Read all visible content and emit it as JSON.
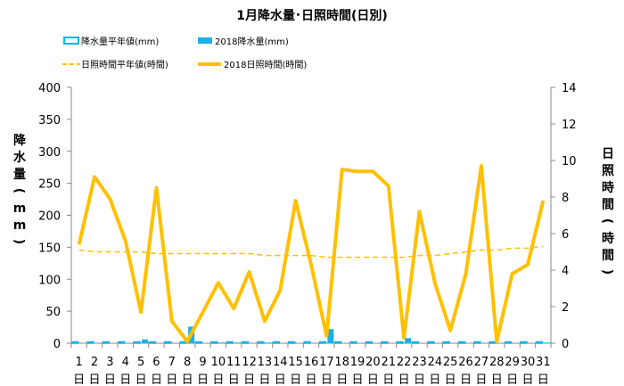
{
  "chart_data": {
    "type": "bar+line",
    "title": "1月降水量･日照時間(日別)",
    "categories": [
      "1",
      "2",
      "3",
      "4",
      "5",
      "6",
      "7",
      "8",
      "9",
      "10",
      "11",
      "12",
      "13",
      "14",
      "15",
      "16",
      "17",
      "18",
      "19",
      "20",
      "21",
      "22",
      "23",
      "24",
      "25",
      "26",
      "27",
      "28",
      "29",
      "30",
      "31"
    ],
    "category_suffix": "日",
    "ylabel_left": "降水量(mm)",
    "ylabel_right": "日照時間(時間)",
    "ylim_left": [
      0,
      400
    ],
    "yticks_left": [
      "0",
      "50",
      "100",
      "150",
      "200",
      "250",
      "300",
      "350",
      "400"
    ],
    "ylim_right": [
      0,
      14
    ],
    "yticks_right": [
      "0",
      "2",
      "4",
      "6",
      "8",
      "10",
      "12",
      "14"
    ],
    "grid": false,
    "legend": [
      {
        "label": "降水量平年値(mm)",
        "marker": "hollow-bar"
      },
      {
        "label": "2018降水量(mm)",
        "marker": "filled-bar"
      },
      {
        "label": "日照時間平年値(時間)",
        "marker": "dashed-line"
      },
      {
        "label": "2018日照時間(時間)",
        "marker": "solid-line"
      }
    ],
    "series": [
      {
        "name": "降水量平年値(mm)",
        "axis": "left",
        "kind": "bar-hollow",
        "values": [
          2,
          2,
          2,
          2,
          2,
          2,
          2,
          2,
          2,
          2,
          2,
          2,
          2,
          2,
          2,
          2,
          2,
          2,
          2,
          2,
          2,
          2,
          2,
          2,
          2,
          2,
          2,
          2,
          2,
          2,
          2
        ]
      },
      {
        "name": "2018降水量(mm)",
        "axis": "left",
        "kind": "bar",
        "values": [
          0,
          0,
          0,
          0,
          6,
          0,
          0,
          26,
          0,
          1,
          1,
          0,
          1,
          0,
          0,
          0,
          22,
          0,
          0,
          0,
          0,
          8,
          0,
          0,
          0,
          0,
          0,
          0,
          0,
          0,
          1
        ]
      },
      {
        "name": "日照時間平年値(時間)",
        "axis": "right",
        "kind": "dashed-line",
        "values": [
          5.1,
          5.0,
          5.0,
          5.0,
          5.0,
          4.9,
          4.9,
          4.9,
          4.9,
          4.9,
          4.9,
          4.9,
          4.8,
          4.8,
          4.8,
          4.8,
          4.7,
          4.7,
          4.7,
          4.7,
          4.7,
          4.7,
          4.8,
          4.8,
          4.9,
          5.0,
          5.1,
          5.1,
          5.2,
          5.2,
          5.3
        ]
      },
      {
        "name": "2018日照時間(時間)",
        "axis": "right",
        "kind": "line",
        "values": [
          5.4,
          9.1,
          7.9,
          5.6,
          1.7,
          8.5,
          1.2,
          0.1,
          1.7,
          3.3,
          1.9,
          3.9,
          1.2,
          2.9,
          7.8,
          4.3,
          0.4,
          9.5,
          9.4,
          9.4,
          8.6,
          0.3,
          7.2,
          3.3,
          0.7,
          3.8,
          9.7,
          0.1,
          3.8,
          4.3,
          7.8
        ]
      }
    ],
    "colors": {
      "precip": "#1ab0e8",
      "sunshine": "#ffc000",
      "axis": "#888888"
    }
  }
}
